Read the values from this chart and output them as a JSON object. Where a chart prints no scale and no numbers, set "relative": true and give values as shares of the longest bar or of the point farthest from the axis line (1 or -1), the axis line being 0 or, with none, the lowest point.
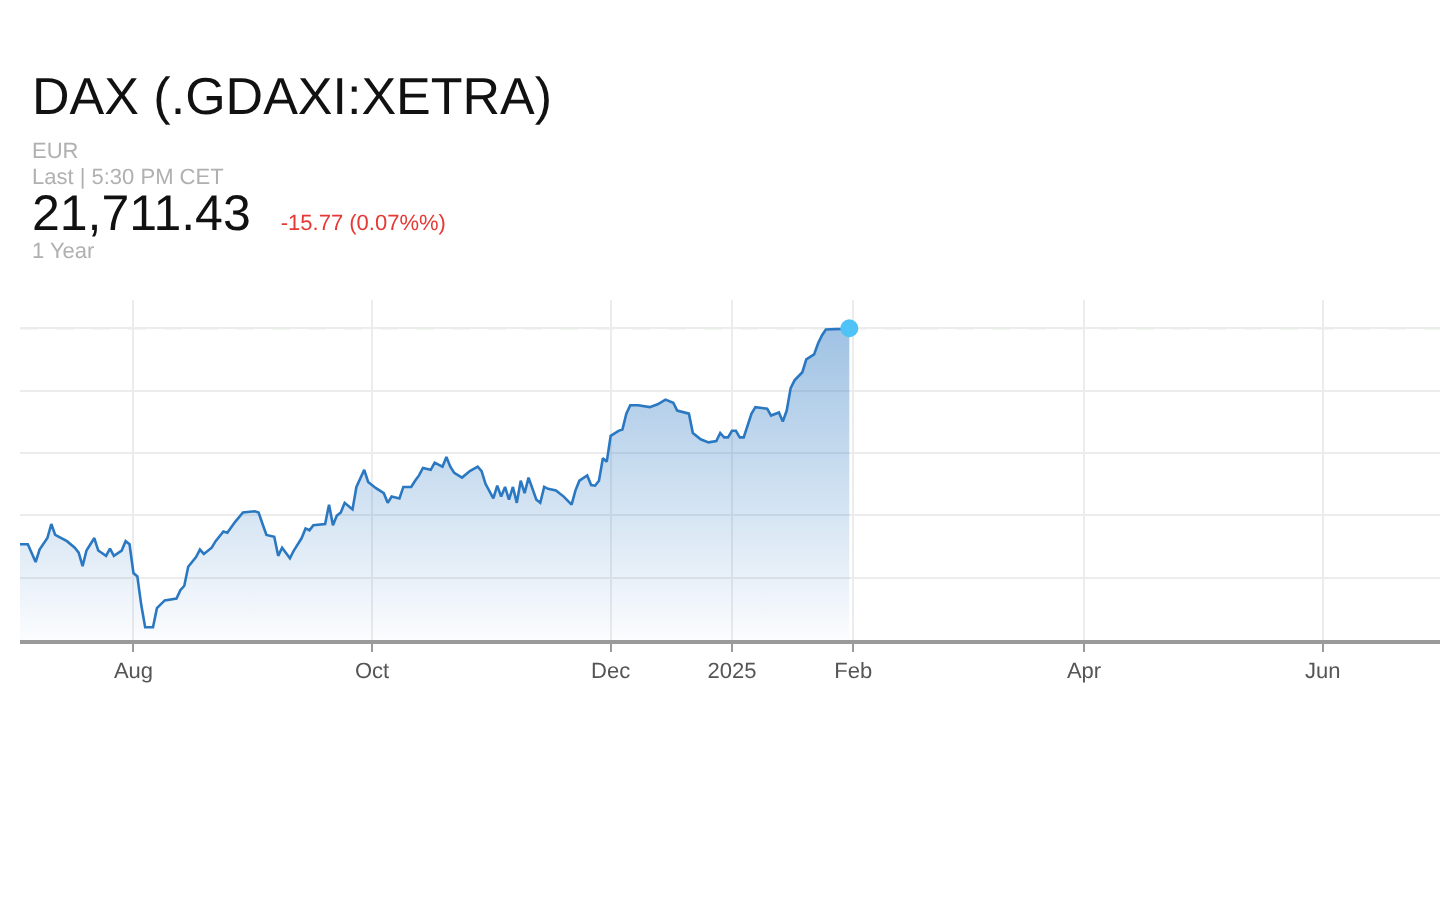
{
  "chart_data": {
    "type": "area",
    "title": "DAX (.GDAXI:XETRA)",
    "annotations": [
      "EUR",
      "Last | 5:30 PM CET",
      "21,711.43",
      "-15.77 (0.07%%)",
      "1 Year"
    ],
    "relative": true,
    "grid": true,
    "xlim": [
      "2024-07-03",
      "2025-07-01"
    ],
    "xticks": [
      {
        "value": "2024-08-01",
        "label": "Aug"
      },
      {
        "value": "2024-10-01",
        "label": "Oct"
      },
      {
        "value": "2024-12-01",
        "label": "Dec"
      },
      {
        "value": "2025-01-01",
        "label": "2025"
      },
      {
        "value": "2025-02-01",
        "label": "Feb"
      },
      {
        "value": "2025-04-01",
        "label": "Apr"
      },
      {
        "value": "2025-06-01",
        "label": "Jun"
      }
    ],
    "x": [
      "2024-07-03",
      "2024-07-05",
      "2024-07-07",
      "2024-07-08",
      "2024-07-10",
      "2024-07-11",
      "2024-07-12",
      "2024-07-15",
      "2024-07-17",
      "2024-07-18",
      "2024-07-19",
      "2024-07-20",
      "2024-07-22",
      "2024-07-23",
      "2024-07-25",
      "2024-07-26",
      "2024-07-27",
      "2024-07-29",
      "2024-07-30",
      "2024-07-31",
      "2024-08-01",
      "2024-08-02",
      "2024-08-03",
      "2024-08-04",
      "2024-08-06",
      "2024-08-07",
      "2024-08-09",
      "2024-08-12",
      "2024-08-13",
      "2024-08-14",
      "2024-08-15",
      "2024-08-17",
      "2024-08-18",
      "2024-08-19",
      "2024-08-21",
      "2024-08-22",
      "2024-08-24",
      "2024-08-25",
      "2024-08-27",
      "2024-08-29",
      "2024-09-01",
      "2024-09-02",
      "2024-09-03",
      "2024-09-04",
      "2024-09-06",
      "2024-09-07",
      "2024-09-08",
      "2024-09-10",
      "2024-09-11",
      "2024-09-13",
      "2024-09-14",
      "2024-09-15",
      "2024-09-16",
      "2024-09-19",
      "2024-09-20",
      "2024-09-21",
      "2024-09-22",
      "2024-09-23",
      "2024-09-24",
      "2024-09-26",
      "2024-09-27",
      "2024-09-29",
      "2024-09-30",
      "2024-10-02",
      "2024-10-04",
      "2024-10-05",
      "2024-10-06",
      "2024-10-08",
      "2024-10-09",
      "2024-10-11",
      "2024-10-12",
      "2024-10-13",
      "2024-10-14",
      "2024-10-16",
      "2024-10-17",
      "2024-10-19",
      "2024-10-20",
      "2024-10-21",
      "2024-10-22",
      "2024-10-24",
      "2024-10-26",
      "2024-10-28",
      "2024-10-29",
      "2024-10-30",
      "2024-11-01",
      "2024-11-02",
      "2024-11-03",
      "2024-11-04",
      "2024-11-05",
      "2024-11-06",
      "2024-11-07",
      "2024-11-08",
      "2024-11-09",
      "2024-11-10",
      "2024-11-12",
      "2024-11-13",
      "2024-11-14",
      "2024-11-15",
      "2024-11-17",
      "2024-11-19",
      "2024-11-21",
      "2024-11-22",
      "2024-11-23",
      "2024-11-25",
      "2024-11-26",
      "2024-11-27",
      "2024-11-28",
      "2024-11-29",
      "2024-11-30",
      "2024-12-01",
      "2024-12-03",
      "2024-12-04",
      "2024-12-05",
      "2024-12-06",
      "2024-12-08",
      "2024-12-11",
      "2024-12-13",
      "2024-12-15",
      "2024-12-17",
      "2024-12-18",
      "2024-12-21",
      "2024-12-22",
      "2024-12-24",
      "2024-12-26",
      "2024-12-28",
      "2024-12-29",
      "2024-12-30",
      "2024-12-31",
      "2025-01-01",
      "2025-01-02",
      "2025-01-03",
      "2025-01-04",
      "2025-01-06",
      "2025-01-07",
      "2025-01-10",
      "2025-01-11",
      "2025-01-13",
      "2025-01-14",
      "2025-01-15",
      "2025-01-16",
      "2025-01-17",
      "2025-01-19",
      "2025-01-20",
      "2025-01-22",
      "2025-01-23",
      "2025-01-24",
      "2025-01-25",
      "2025-01-29",
      "2025-01-31"
    ],
    "series": [
      {
        "color": "#2b78c2",
        "values": [
          0.307,
          0.307,
          0.25,
          0.29,
          0.327,
          0.372,
          0.337,
          0.317,
          0.296,
          0.28,
          0.237,
          0.287,
          0.327,
          0.287,
          0.27,
          0.293,
          0.27,
          0.287,
          0.317,
          0.307,
          0.215,
          0.204,
          0.112,
          0.041,
          0.041,
          0.102,
          0.127,
          0.133,
          0.16,
          0.174,
          0.235,
          0.266,
          0.29,
          0.276,
          0.296,
          0.317,
          0.348,
          0.344,
          0.379,
          0.409,
          0.413,
          0.409,
          0.372,
          0.337,
          0.331,
          0.27,
          0.296,
          0.262,
          0.287,
          0.327,
          0.358,
          0.352,
          0.368,
          0.372,
          0.434,
          0.368,
          0.399,
          0.409,
          0.44,
          0.419,
          0.491,
          0.546,
          0.507,
          0.487,
          0.471,
          0.44,
          0.46,
          0.454,
          0.491,
          0.491,
          0.511,
          0.528,
          0.552,
          0.546,
          0.569,
          0.556,
          0.587,
          0.556,
          0.536,
          0.521,
          0.542,
          0.556,
          0.542,
          0.501,
          0.454,
          0.495,
          0.46,
          0.491,
          0.45,
          0.491,
          0.44,
          0.511,
          0.471,
          0.521,
          0.45,
          0.44,
          0.491,
          0.485,
          0.48,
          0.46,
          0.434,
          0.48,
          0.511,
          0.528,
          0.497,
          0.495,
          0.511,
          0.583,
          0.572,
          0.655,
          0.671,
          0.675,
          0.726,
          0.753,
          0.753,
          0.747,
          0.756,
          0.771,
          0.761,
          0.736,
          0.726,
          0.664,
          0.644,
          0.634,
          0.638,
          0.664,
          0.65,
          0.65,
          0.671,
          0.671,
          0.65,
          0.65,
          0.726,
          0.747,
          0.742,
          0.72,
          0.73,
          0.701,
          0.736,
          0.808,
          0.833,
          0.859,
          0.9,
          0.916,
          0.951,
          0.977,
          0.996,
          0.998,
          1
        ]
      },
      {
        "type": "scatter",
        "marker": "circle",
        "color": "#4fc3f7",
        "x": [
          "2025-01-31"
        ],
        "values": [
          1
        ]
      }
    ],
    "ref_lines": [
      {
        "axis": "y",
        "value": 1,
        "color": "#c6e2c0",
        "line_style": "dashed"
      }
    ]
  }
}
